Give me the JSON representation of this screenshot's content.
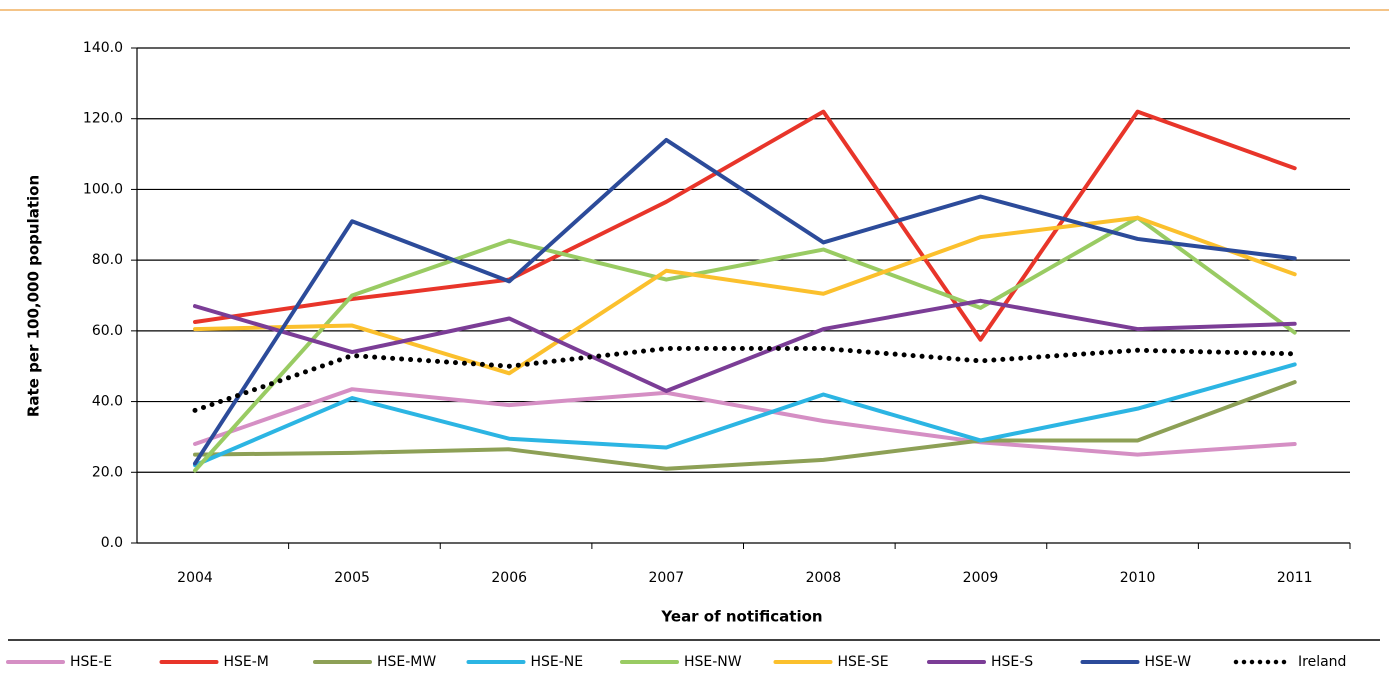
{
  "chart_data": {
    "type": "line",
    "x_label": "Year of notification",
    "y_label": "Rate per 100,000 population",
    "categories": [
      "2004",
      "2005",
      "2006",
      "2007",
      "2008",
      "2009",
      "2010",
      "2011"
    ],
    "ylim": [
      0,
      140
    ],
    "yticks": [
      {
        "value": 0,
        "label": "0.0"
      },
      {
        "value": 20,
        "label": "20.0"
      },
      {
        "value": 40,
        "label": "40.0"
      },
      {
        "value": 60,
        "label": "60.0"
      },
      {
        "value": 80,
        "label": "80.0"
      },
      {
        "value": 100,
        "label": "100.0"
      },
      {
        "value": 120,
        "label": "120.0"
      },
      {
        "value": 140,
        "label": "140.0"
      }
    ],
    "grid": true,
    "legend": "bottom",
    "series": [
      {
        "name": "HSE-E",
        "color": "#d58fc4",
        "values": [
          28,
          43.5,
          39,
          42.5,
          34.5,
          28.5,
          25,
          28
        ]
      },
      {
        "name": "HSE-M",
        "color": "#e8352a",
        "values": [
          62.5,
          69,
          74.5,
          96.5,
          122,
          57.5,
          122,
          106
        ]
      },
      {
        "name": "HSE-MW",
        "color": "#8da056",
        "values": [
          25,
          25.5,
          26.5,
          21,
          23.5,
          29,
          29,
          45.5
        ]
      },
      {
        "name": "HSE-NE",
        "color": "#2cb5e3",
        "values": [
          22,
          41,
          29.5,
          27,
          42,
          29,
          38,
          50.5
        ]
      },
      {
        "name": "HSE-NW",
        "color": "#99cb63",
        "values": [
          20.5,
          70,
          85.5,
          74.5,
          83,
          66.5,
          92,
          59.5
        ]
      },
      {
        "name": "HSE-SE",
        "color": "#fbc02d",
        "values": [
          60.5,
          61.5,
          48,
          77,
          70.5,
          86.5,
          92,
          76
        ]
      },
      {
        "name": "HSE-S",
        "color": "#7b3d96",
        "values": [
          67,
          54,
          63.5,
          43,
          60.5,
          68.5,
          60.5,
          62
        ]
      },
      {
        "name": "HSE-W",
        "color": "#2c4b9a",
        "values": [
          22.5,
          91,
          74,
          114,
          85,
          98,
          86,
          80.5
        ]
      },
      {
        "name": "Ireland",
        "color": "#000000",
        "dotted": true,
        "values": [
          37.5,
          53,
          50,
          55,
          55,
          51.5,
          54.5,
          53.5
        ]
      }
    ]
  }
}
